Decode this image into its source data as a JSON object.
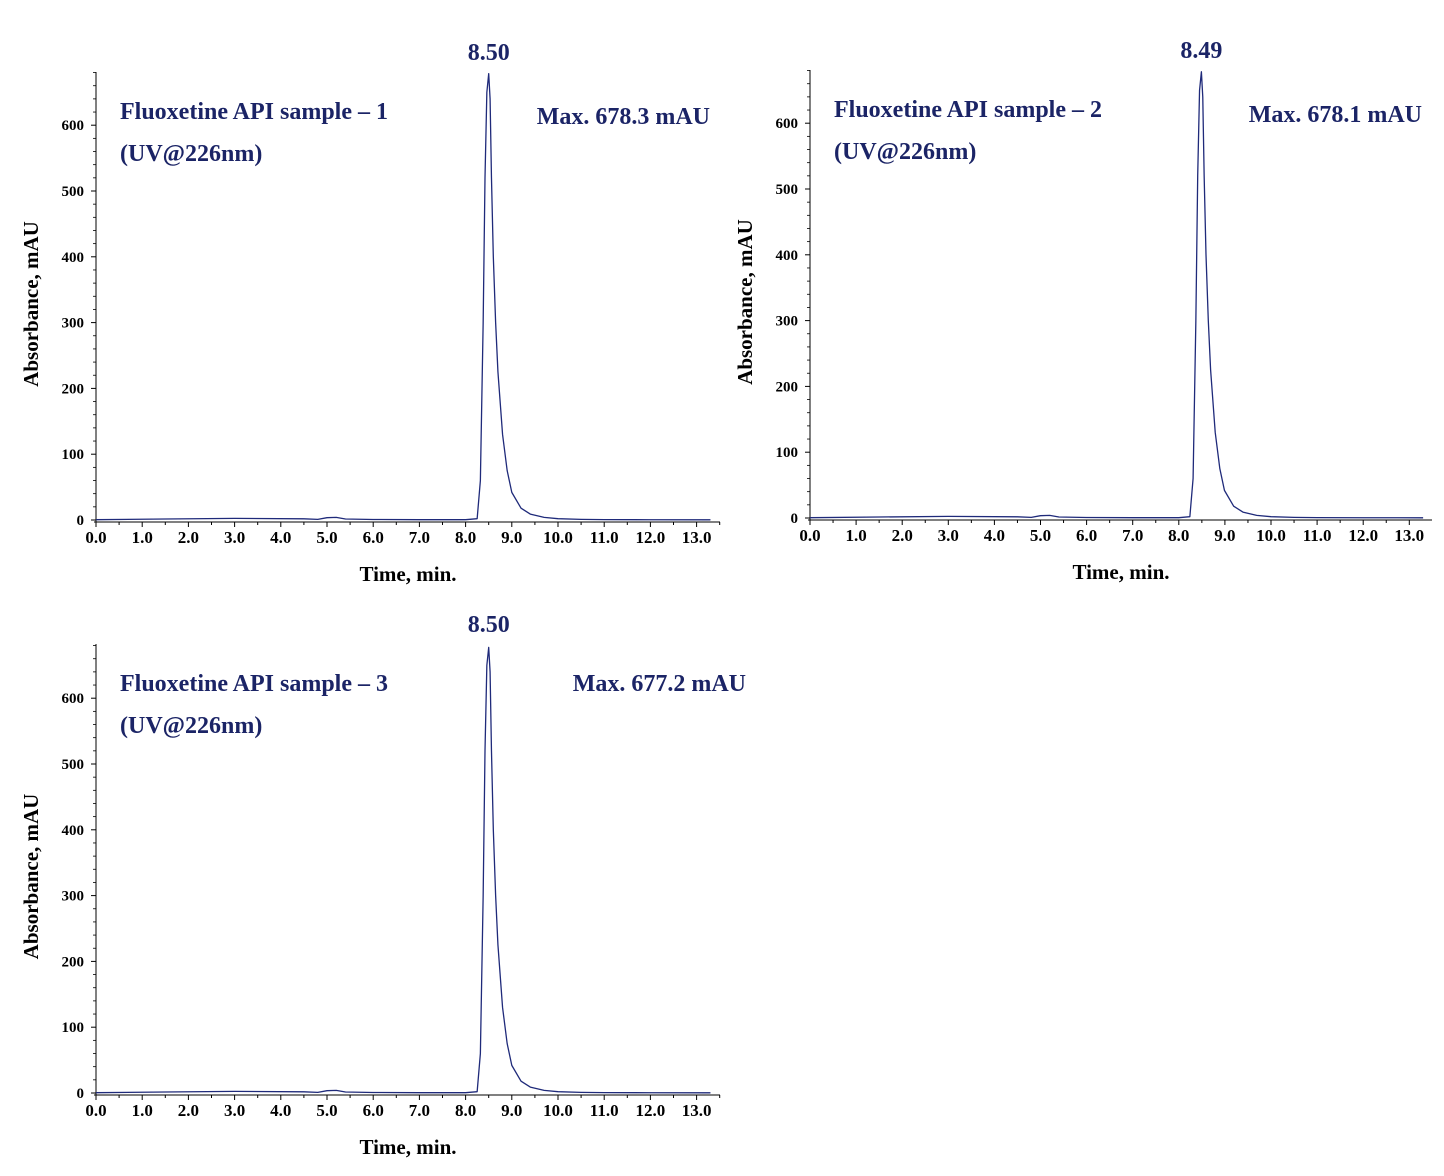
{
  "colors": {
    "trace": "#1f2a7a",
    "annotation": "#1b2466",
    "axis": "#000000",
    "background": "#ffffff"
  },
  "chart_data": [
    {
      "type": "line",
      "title": "Fluoxetine API sample – 1",
      "subtitle": "(UV@226nm)",
      "xlabel": "Time, min.",
      "ylabel": "Absorbance, mAU",
      "xlim": [
        0.0,
        13.5
      ],
      "ylim": [
        0,
        680
      ],
      "x_ticks": [
        "0.0",
        "1.0",
        "2.0",
        "3.0",
        "4.0",
        "5.0",
        "6.0",
        "7.0",
        "8.0",
        "9.0",
        "10.0",
        "11.0",
        "12.0",
        "13.0"
      ],
      "y_ticks": [
        "0",
        "100",
        "200",
        "300",
        "400",
        "500",
        "600"
      ],
      "grid": false,
      "peak": {
        "retention_time": 8.5,
        "label": "8.50",
        "max_text": "Max. 678.3 mAU",
        "height": 678.3
      },
      "series": [
        {
          "x": [
            0.0,
            1.5,
            3.0,
            4.5,
            4.8,
            5.0,
            5.2,
            5.4,
            6.0,
            7.0,
            8.0,
            8.25,
            8.32,
            8.38,
            8.42,
            8.46,
            8.5,
            8.53,
            8.56,
            8.6,
            8.65,
            8.7,
            8.8,
            8.9,
            9.0,
            9.2,
            9.4,
            9.7,
            10.0,
            10.5,
            11.0,
            12.0,
            13.3
          ],
          "y": [
            0.5,
            1.5,
            2.5,
            1.8,
            1.0,
            3.5,
            4.0,
            1.5,
            0.8,
            0.5,
            0.5,
            2,
            60,
            300,
            520,
            650,
            678.3,
            640,
            520,
            400,
            300,
            225,
            130,
            75,
            42,
            18,
            9,
            4,
            2,
            1,
            0.6,
            0.4,
            0.3
          ]
        }
      ]
    },
    {
      "type": "line",
      "title": "Fluoxetine API sample – 2",
      "subtitle": "(UV@226nm)",
      "xlabel": "Time, min.",
      "ylabel": "Absorbance, mAU",
      "xlim": [
        0.0,
        13.5
      ],
      "ylim": [
        0,
        680
      ],
      "x_ticks": [
        "0.0",
        "1.0",
        "2.0",
        "3.0",
        "4.0",
        "5.0",
        "6.0",
        "7.0",
        "8.0",
        "9.0",
        "10.0",
        "11.0",
        "12.0",
        "13.0"
      ],
      "y_ticks": [
        "0",
        "100",
        "200",
        "300",
        "400",
        "500",
        "600"
      ],
      "grid": false,
      "peak": {
        "retention_time": 8.49,
        "label": "8.49",
        "max_text": "Max. 678.1 mAU",
        "height": 678.1
      },
      "series": [
        {
          "x": [
            0.0,
            1.5,
            3.0,
            4.5,
            4.8,
            5.0,
            5.2,
            5.4,
            6.0,
            7.0,
            8.0,
            8.24,
            8.31,
            8.37,
            8.41,
            8.45,
            8.49,
            8.52,
            8.55,
            8.59,
            8.64,
            8.69,
            8.79,
            8.89,
            8.99,
            9.19,
            9.39,
            9.69,
            10.0,
            10.5,
            11.0,
            12.0,
            13.3
          ],
          "y": [
            0.5,
            1.5,
            2.5,
            1.8,
            1.0,
            3.5,
            4.0,
            1.5,
            0.8,
            0.5,
            0.5,
            2,
            60,
            300,
            520,
            650,
            678.1,
            640,
            520,
            400,
            300,
            225,
            130,
            75,
            42,
            18,
            9,
            4,
            2,
            1,
            0.6,
            0.4,
            0.3
          ]
        }
      ]
    },
    {
      "type": "line",
      "title": "Fluoxetine API sample – 3",
      "subtitle": "(UV@226nm)",
      "xlabel": "Time, min.",
      "ylabel": "Absorbance, mAU",
      "xlim": [
        0.0,
        13.5
      ],
      "ylim": [
        0,
        680
      ],
      "x_ticks": [
        "0.0",
        "1.0",
        "2.0",
        "3.0",
        "4.0",
        "5.0",
        "6.0",
        "7.0",
        "8.0",
        "9.0",
        "10.0",
        "11.0",
        "12.0",
        "13.0"
      ],
      "y_ticks": [
        "0",
        "100",
        "200",
        "300",
        "400",
        "500",
        "600"
      ],
      "grid": false,
      "peak": {
        "retention_time": 8.5,
        "label": "8.50",
        "max_text": "Max. 677.2 mAU",
        "height": 677.2
      },
      "series": [
        {
          "x": [
            0.0,
            1.5,
            3.0,
            4.5,
            4.8,
            5.0,
            5.2,
            5.4,
            6.0,
            7.0,
            8.0,
            8.25,
            8.32,
            8.38,
            8.42,
            8.46,
            8.5,
            8.53,
            8.56,
            8.6,
            8.65,
            8.7,
            8.8,
            8.9,
            9.0,
            9.2,
            9.4,
            9.7,
            10.0,
            10.5,
            11.0,
            12.0,
            13.3
          ],
          "y": [
            0.5,
            1.5,
            2.5,
            1.8,
            1.0,
            3.5,
            4.0,
            1.5,
            0.8,
            0.5,
            0.5,
            2,
            60,
            300,
            520,
            650,
            677.2,
            640,
            520,
            400,
            300,
            225,
            130,
            75,
            42,
            18,
            9,
            4,
            2,
            1,
            0.6,
            0.4,
            0.3
          ]
        }
      ]
    }
  ]
}
